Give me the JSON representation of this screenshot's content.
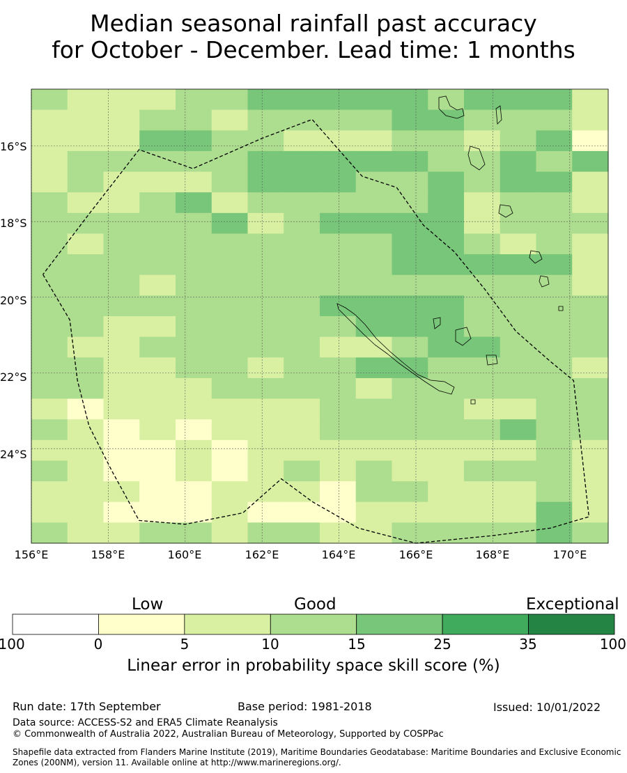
{
  "title_line1": "Median seasonal rainfall past accuracy",
  "title_line2": "for October - December. Lead time: 1 months",
  "map": {
    "lon_range": [
      156,
      171
    ],
    "lat_range": [
      -26.5,
      -14.5
    ],
    "lat_ticks": [
      {
        "value": -16,
        "label": "16°S"
      },
      {
        "value": -18,
        "label": "18°S"
      },
      {
        "value": -20,
        "label": "20°S"
      },
      {
        "value": -22,
        "label": "22°S"
      },
      {
        "value": -24,
        "label": "24°S"
      }
    ],
    "lon_ticks": [
      {
        "value": 156,
        "label": "156°E"
      },
      {
        "value": 158,
        "label": "158°E"
      },
      {
        "value": 160,
        "label": "160°E"
      },
      {
        "value": 162,
        "label": "162°E"
      },
      {
        "value": 164,
        "label": "164°E"
      },
      {
        "value": 166,
        "label": "166°E"
      },
      {
        "value": 168,
        "label": "168°E"
      },
      {
        "value": 170,
        "label": "170°E"
      }
    ],
    "grid": true,
    "boundary_style": "dashed",
    "boundary_lonlat": [
      [
        156.3,
        -19.4
      ],
      [
        157.0,
        -20.6
      ],
      [
        157.2,
        -22.2
      ],
      [
        157.5,
        -23.4
      ],
      [
        158.1,
        -24.6
      ],
      [
        158.8,
        -25.9
      ],
      [
        160.0,
        -26.0
      ],
      [
        161.5,
        -25.7
      ],
      [
        162.5,
        -24.8
      ],
      [
        163.3,
        -25.4
      ],
      [
        164.5,
        -26.1
      ],
      [
        166.0,
        -26.5
      ],
      [
        168.0,
        -26.3
      ],
      [
        169.5,
        -26.1
      ],
      [
        170.5,
        -25.8
      ],
      [
        170.1,
        -22.2
      ],
      [
        169.5,
        -21.7
      ],
      [
        168.6,
        -20.9
      ],
      [
        167.8,
        -19.8
      ],
      [
        167.0,
        -18.8
      ],
      [
        166.2,
        -18.1
      ],
      [
        165.5,
        -17.1
      ],
      [
        164.6,
        -16.8
      ],
      [
        163.3,
        -15.3
      ],
      [
        162.0,
        -15.8
      ],
      [
        160.2,
        -16.6
      ],
      [
        158.8,
        -16.1
      ],
      [
        157.5,
        -17.8
      ],
      [
        156.3,
        -19.4
      ]
    ]
  },
  "colorbar": {
    "categories": [
      "Low",
      "Good",
      "Exceptional"
    ],
    "ticks": [
      "-100",
      "0",
      "5",
      "10",
      "15",
      "25",
      "35",
      "100"
    ],
    "colors": [
      "#ffffff",
      "#ffffcc",
      "#d9f0a3",
      "#addd8e",
      "#78c679",
      "#41ab5d",
      "#238443"
    ],
    "label": "Linear error in probability space skill score (%)"
  },
  "skill_grid": [
    "3222334444434442",
    "2223323333443332",
    "2224433222332341",
    "2333334444433434",
    "2322234443343442",
    "3223423333342332",
    "3333342344442333",
    "3233333333443232",
    "3333333333444442",
    "3332333333333332",
    "3333333344443333",
    "3322333334443333",
    "3223333322344333",
    "3322332334433332",
    "3322233332333333",
    "2122222233332233",
    "3212122233333433",
    "2211212222222232",
    "3211212323223332",
    "2221122213322232",
    "2211121112222242",
    "3223323322333343"
  ],
  "footer": {
    "run_date": "Run date: 17th September",
    "base_period": "Base period: 1981-2018",
    "issued": "Issued: 10/01/2022",
    "data_source": "Data source: ACCESS-S2 and ERA5 Climate Reanalysis",
    "copyright": "© Commonwealth of Australia 2022, Australian Bureau of Meteorology, Supported by COSPPac",
    "shapefile": "Shapefile data extracted from Flanders Marine Institute (2019), Maritime Boundaries Geodatabase: Maritime Boundaries and Exclusive Economic Zones (200NM), version 11. Available online at http://www.marineregions.org/."
  }
}
